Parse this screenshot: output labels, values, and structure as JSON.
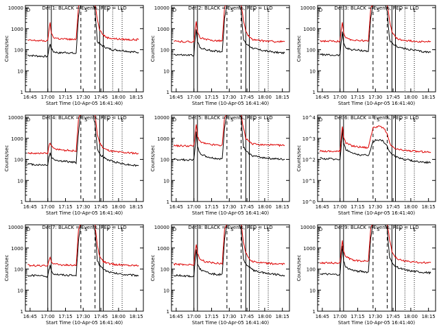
{
  "figure": {
    "y_label": "Counts/sec",
    "x_label": "Start Time (10-Apr-05 16:41:40)",
    "x_ticks": [
      "16:45",
      "17:00",
      "17:15",
      "17:30",
      "17:45",
      "18:00",
      "18:15"
    ],
    "y_ticks_standard": [
      "1",
      "10",
      "100",
      "1000",
      "10000"
    ],
    "y_ticks_exponent": [
      "10^0",
      "10^1",
      "10^2",
      "10^3",
      "10^4"
    ],
    "colors": {
      "events": "#000000",
      "lld": "#dd0000",
      "axis": "#000000",
      "background": "#ffffff"
    },
    "marker_labels": [
      "D",
      "S",
      "F",
      "L"
    ]
  },
  "chart_data": [
    {
      "type": "line",
      "title": "Det 1: BLACK = Events, RED = LLD",
      "ylabel": "Counts/sec",
      "xlabel": "Start Time (10-Apr-05 16:41:40)",
      "y_scale": "log",
      "ylim": [
        1,
        10000
      ],
      "tick_style": "standard",
      "x_time": [
        "16:43",
        "16:52",
        "17:00",
        "17:01",
        "17:02",
        "17:03",
        "17:05",
        "17:10",
        "17:15",
        "17:20",
        "17:24",
        "17:26",
        "17:28",
        "17:30",
        "17:33",
        "17:36",
        "17:38",
        "17:40",
        "17:42",
        "17:44",
        "17:47",
        "17:50",
        "17:55",
        "18:00",
        "18:05",
        "18:10",
        "18:17"
      ],
      "series": [
        {
          "name": "Events",
          "color": "#000000",
          "values": [
            55,
            50,
            48,
            120,
            180,
            110,
            80,
            70,
            75,
            70,
            65,
            4000,
            15000,
            15000,
            15000,
            15000,
            15000,
            8000,
            250,
            180,
            150,
            120,
            100,
            95,
            90,
            80,
            75
          ]
        },
        {
          "name": "LLD",
          "color": "#dd0000",
          "values": [
            280,
            270,
            260,
            900,
            1800,
            600,
            380,
            330,
            320,
            310,
            300,
            12000,
            15000,
            15000,
            15000,
            15000,
            15000,
            15000,
            3000,
            900,
            500,
            380,
            340,
            320,
            310,
            300,
            300
          ]
        }
      ]
    },
    {
      "type": "line",
      "title": "Det 2: BLACK = Events, RED = LLD",
      "ylabel": "Counts/sec",
      "xlabel": "Start Time (10-Apr-05 16:41:40)",
      "y_scale": "log",
      "ylim": [
        1,
        10000
      ],
      "tick_style": "standard",
      "x_time": [
        "16:43",
        "16:52",
        "17:00",
        "17:01",
        "17:02",
        "17:03",
        "17:05",
        "17:10",
        "17:15",
        "17:20",
        "17:24",
        "17:26",
        "17:28",
        "17:30",
        "17:33",
        "17:36",
        "17:38",
        "17:40",
        "17:42",
        "17:44",
        "17:47",
        "17:50",
        "17:55",
        "18:00",
        "18:05",
        "18:10",
        "18:17"
      ],
      "series": [
        {
          "name": "Events",
          "color": "#000000",
          "values": [
            60,
            55,
            55,
            300,
            900,
            250,
            130,
            100,
            90,
            85,
            80,
            3000,
            15000,
            15000,
            15000,
            15000,
            15000,
            7000,
            300,
            200,
            150,
            120,
            100,
            90,
            80,
            75,
            70
          ]
        },
        {
          "name": "LLD",
          "color": "#dd0000",
          "values": [
            250,
            240,
            240,
            900,
            2000,
            700,
            380,
            300,
            280,
            270,
            260,
            10000,
            15000,
            15000,
            15000,
            15000,
            15000,
            15000,
            2500,
            700,
            400,
            300,
            270,
            260,
            250,
            240,
            240
          ]
        }
      ]
    },
    {
      "type": "line",
      "title": "Det 3: BLACK = Events, RED = LLD",
      "ylabel": "Counts/sec",
      "xlabel": "Start Time (10-Apr-05 16:41:40)",
      "y_scale": "log",
      "ylim": [
        1,
        10000
      ],
      "tick_style": "standard",
      "x_time": [
        "16:43",
        "16:52",
        "17:00",
        "17:01",
        "17:02",
        "17:03",
        "17:05",
        "17:10",
        "17:15",
        "17:20",
        "17:24",
        "17:26",
        "17:28",
        "17:30",
        "17:33",
        "17:36",
        "17:38",
        "17:40",
        "17:42",
        "17:44",
        "17:47",
        "17:50",
        "17:55",
        "18:00",
        "18:05",
        "18:10",
        "18:17"
      ],
      "series": [
        {
          "name": "Events",
          "color": "#000000",
          "values": [
            60,
            55,
            55,
            250,
            700,
            220,
            120,
            100,
            95,
            90,
            85,
            3000,
            15000,
            15000,
            15000,
            15000,
            15000,
            6000,
            300,
            200,
            160,
            130,
            110,
            100,
            90,
            80,
            75
          ]
        },
        {
          "name": "LLD",
          "color": "#dd0000",
          "values": [
            260,
            250,
            250,
            800,
            1800,
            650,
            350,
            300,
            280,
            270,
            260,
            9000,
            15000,
            15000,
            15000,
            15000,
            15000,
            15000,
            2500,
            700,
            400,
            300,
            280,
            260,
            250,
            245,
            240
          ]
        }
      ]
    },
    {
      "type": "line",
      "title": "Det 4: BLACK = Events, RED = LLD",
      "ylabel": "Counts/sec",
      "xlabel": "Start Time (10-Apr-05 16:41:40)",
      "y_scale": "log",
      "ylim": [
        1,
        10000
      ],
      "tick_style": "standard",
      "x_time": [
        "16:43",
        "16:52",
        "17:00",
        "17:01",
        "17:02",
        "17:03",
        "17:05",
        "17:10",
        "17:15",
        "17:20",
        "17:24",
        "17:26",
        "17:28",
        "17:30",
        "17:33",
        "17:36",
        "17:38",
        "17:40",
        "17:42",
        "17:44",
        "17:47",
        "17:50",
        "17:55",
        "18:00",
        "18:05",
        "18:10",
        "18:17"
      ],
      "series": [
        {
          "name": "Events",
          "color": "#000000",
          "values": [
            60,
            55,
            55,
            130,
            200,
            130,
            100,
            85,
            80,
            75,
            70,
            2000,
            15000,
            15000,
            15000,
            15000,
            15000,
            5000,
            300,
            180,
            130,
            100,
            80,
            70,
            60,
            55,
            50
          ]
        },
        {
          "name": "LLD",
          "color": "#dd0000",
          "values": [
            200,
            190,
            190,
            450,
            650,
            420,
            320,
            290,
            270,
            260,
            250,
            8000,
            15000,
            15000,
            15000,
            15000,
            15000,
            15000,
            1500,
            600,
            350,
            280,
            240,
            220,
            210,
            200,
            190
          ]
        }
      ]
    },
    {
      "type": "line",
      "title": "Det 5: BLACK = Events, RED = LLD",
      "ylabel": "Counts/sec",
      "xlabel": "Start Time (10-Apr-05 16:41:40)",
      "y_scale": "log",
      "ylim": [
        1,
        10000
      ],
      "tick_style": "standard",
      "x_time": [
        "16:43",
        "16:52",
        "17:00",
        "17:01",
        "17:02",
        "17:03",
        "17:05",
        "17:10",
        "17:15",
        "17:20",
        "17:24",
        "17:26",
        "17:28",
        "17:30",
        "17:33",
        "17:36",
        "17:38",
        "17:40",
        "17:42",
        "17:44",
        "17:47",
        "17:50",
        "17:55",
        "18:00",
        "18:05",
        "18:10",
        "18:17"
      ],
      "series": [
        {
          "name": "Events",
          "color": "#000000",
          "values": [
            100,
            95,
            95,
            400,
            2000,
            400,
            200,
            140,
            120,
            110,
            105,
            3000,
            15000,
            15000,
            15000,
            15000,
            15000,
            9000,
            400,
            250,
            180,
            150,
            130,
            120,
            110,
            105,
            100
          ]
        },
        {
          "name": "LLD",
          "color": "#dd0000",
          "values": [
            450,
            440,
            440,
            1500,
            5000,
            1300,
            700,
            550,
            500,
            480,
            470,
            10000,
            15000,
            15000,
            15000,
            15000,
            15000,
            15000,
            3000,
            1000,
            650,
            540,
            500,
            490,
            480,
            470,
            460
          ]
        }
      ]
    },
    {
      "type": "line",
      "title": "Det 6: BLACK = Events, RED = LLD",
      "ylabel": "Counts/sec",
      "xlabel": "Start Time (10-Apr-05 16:41:40)",
      "y_scale": "log",
      "ylim": [
        1,
        10000
      ],
      "tick_style": "exponent",
      "x_time": [
        "16:43",
        "16:52",
        "17:00",
        "17:01",
        "17:02",
        "17:03",
        "17:05",
        "17:10",
        "17:15",
        "17:20",
        "17:24",
        "17:26",
        "17:28",
        "17:30",
        "17:33",
        "17:36",
        "17:38",
        "17:40",
        "17:42",
        "17:44",
        "17:47",
        "17:50",
        "17:55",
        "18:00",
        "18:05",
        "18:10",
        "18:17"
      ],
      "series": [
        {
          "name": "Events",
          "color": "#000000",
          "values": [
            110,
            105,
            100,
            400,
            2500,
            600,
            300,
            200,
            170,
            160,
            150,
            300,
            700,
            800,
            850,
            800,
            600,
            400,
            250,
            180,
            140,
            120,
            100,
            90,
            80,
            75,
            70
          ]
        },
        {
          "name": "LLD",
          "color": "#dd0000",
          "values": [
            250,
            245,
            240,
            1000,
            4000,
            1200,
            600,
            450,
            400,
            380,
            360,
            1200,
            3000,
            3500,
            3600,
            3300,
            2500,
            1500,
            600,
            400,
            320,
            290,
            270,
            250,
            240,
            230,
            220
          ]
        }
      ]
    },
    {
      "type": "line",
      "title": "Det 7: BLACK = Events, RED = LLD",
      "ylabel": "Counts/sec",
      "xlabel": "Start Time (10-Apr-05 16:41:40)",
      "y_scale": "log",
      "ylim": [
        1,
        10000
      ],
      "tick_style": "standard",
      "x_time": [
        "16:43",
        "16:52",
        "17:00",
        "17:01",
        "17:02",
        "17:03",
        "17:05",
        "17:10",
        "17:15",
        "17:20",
        "17:24",
        "17:26",
        "17:28",
        "17:30",
        "17:33",
        "17:36",
        "17:38",
        "17:40",
        "17:42",
        "17:44",
        "17:47",
        "17:50",
        "17:55",
        "18:00",
        "18:05",
        "18:10",
        "18:17"
      ],
      "series": [
        {
          "name": "Events",
          "color": "#000000",
          "values": [
            50,
            48,
            45,
            90,
            150,
            80,
            60,
            55,
            52,
            50,
            50,
            2000,
            15000,
            15000,
            15000,
            15000,
            15000,
            6000,
            250,
            150,
            100,
            80,
            65,
            60,
            55,
            52,
            50
          ]
        },
        {
          "name": "LLD",
          "color": "#dd0000",
          "values": [
            150,
            145,
            140,
            250,
            400,
            230,
            180,
            160,
            155,
            150,
            150,
            7000,
            15000,
            15000,
            15000,
            15000,
            15000,
            15000,
            1200,
            400,
            230,
            190,
            170,
            160,
            155,
            150,
            150
          ]
        }
      ]
    },
    {
      "type": "line",
      "title": "Det 8: BLACK = Events, RED = LLD",
      "ylabel": "Counts/sec",
      "xlabel": "Start Time (10-Apr-05 16:41:40)",
      "y_scale": "log",
      "ylim": [
        1,
        10000
      ],
      "tick_style": "standard",
      "x_time": [
        "16:43",
        "16:52",
        "17:00",
        "17:01",
        "17:02",
        "17:03",
        "17:05",
        "17:10",
        "17:15",
        "17:20",
        "17:24",
        "17:26",
        "17:28",
        "17:30",
        "17:33",
        "17:36",
        "17:38",
        "17:40",
        "17:42",
        "17:44",
        "17:47",
        "17:50",
        "17:55",
        "18:00",
        "18:05",
        "18:10",
        "18:17"
      ],
      "series": [
        {
          "name": "Events",
          "color": "#000000",
          "values": [
            50,
            48,
            45,
            250,
            800,
            200,
            100,
            70,
            60,
            55,
            55,
            2500,
            15000,
            15000,
            15000,
            15000,
            15000,
            7000,
            300,
            180,
            120,
            90,
            75,
            65,
            60,
            55,
            50
          ]
        },
        {
          "name": "LLD",
          "color": "#dd0000",
          "values": [
            170,
            165,
            160,
            600,
            1600,
            550,
            300,
            220,
            200,
            190,
            185,
            8000,
            15000,
            15000,
            15000,
            15000,
            15000,
            15000,
            2000,
            600,
            300,
            230,
            200,
            190,
            180,
            175,
            170
          ]
        }
      ]
    },
    {
      "type": "line",
      "title": "Det 9: BLACK = Events, RED = LLD",
      "ylabel": "Counts/sec",
      "xlabel": "Start Time (10-Apr-05 16:41:40)",
      "y_scale": "log",
      "ylim": [
        1,
        10000
      ],
      "tick_style": "standard",
      "x_time": [
        "16:43",
        "16:52",
        "17:00",
        "17:01",
        "17:02",
        "17:03",
        "17:05",
        "17:10",
        "17:15",
        "17:20",
        "17:24",
        "17:26",
        "17:28",
        "17:30",
        "17:33",
        "17:36",
        "17:38",
        "17:40",
        "17:42",
        "17:44",
        "17:47",
        "17:50",
        "17:55",
        "18:00",
        "18:05",
        "18:10",
        "18:17"
      ],
      "series": [
        {
          "name": "Events",
          "color": "#000000",
          "values": [
            60,
            55,
            55,
            300,
            1200,
            250,
            120,
            90,
            80,
            75,
            70,
            3000,
            15000,
            15000,
            15000,
            15000,
            15000,
            8000,
            350,
            200,
            140,
            110,
            90,
            80,
            75,
            70,
            65
          ]
        },
        {
          "name": "LLD",
          "color": "#dd0000",
          "values": [
            200,
            195,
            190,
            800,
            2500,
            700,
            380,
            280,
            250,
            240,
            230,
            9000,
            15000,
            15000,
            15000,
            15000,
            15000,
            15000,
            2500,
            700,
            380,
            280,
            240,
            220,
            210,
            200,
            200
          ]
        }
      ]
    }
  ]
}
